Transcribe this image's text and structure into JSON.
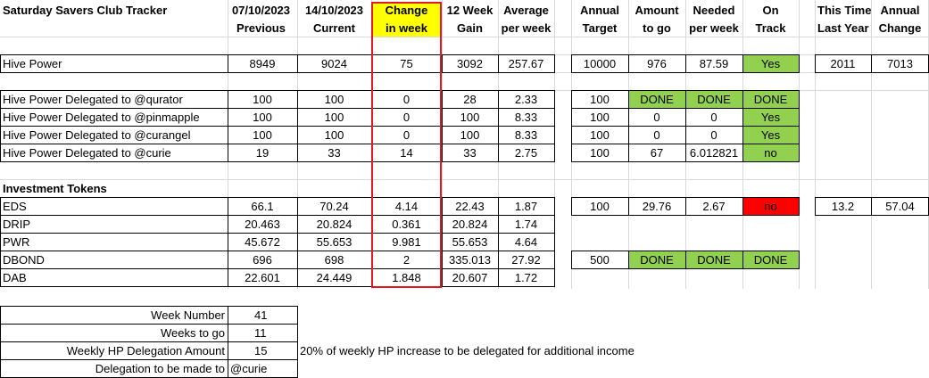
{
  "title": "Saturday Savers Club Tracker",
  "headers": {
    "prev_top": "07/10/2023",
    "prev_bot": "Previous",
    "cur_top": "14/10/2023",
    "cur_bot": "Current",
    "chg_top": "Change",
    "chg_bot": "in week",
    "gain_top": "12 Week",
    "gain_bot": "Gain",
    "avg_top": "Average",
    "avg_bot": "per week",
    "target_top": "Annual",
    "target_bot": "Target",
    "togo_top": "Amount",
    "togo_bot": "to go",
    "needed_top": "Needed",
    "needed_bot": "per week",
    "ontrack_top": "On",
    "ontrack_bot": "Track",
    "lastyear_top": "This Time",
    "lastyear_bot": "Last Year",
    "annchg_top": "Annual",
    "annchg_bot": "Change"
  },
  "rows": {
    "hp": {
      "label": "Hive Power",
      "prev": "8949",
      "cur": "9024",
      "chg": "75",
      "gain": "3092",
      "avg": "257.67",
      "target": "10000",
      "togo": "976",
      "needed": "87.59",
      "ontrack": "Yes",
      "lastyear": "2011",
      "annchg": "7013"
    },
    "qurator": {
      "label": "Hive Power Delegated to @qurator",
      "prev": "100",
      "cur": "100",
      "chg": "0",
      "gain": "28",
      "avg": "2.33",
      "target": "100",
      "togo": "DONE",
      "needed": "DONE",
      "ontrack": "DONE"
    },
    "pinmapple": {
      "label": "Hive Power Delegated to @pinmapple",
      "prev": "100",
      "cur": "100",
      "chg": "0",
      "gain": "100",
      "avg": "8.33",
      "target": "100",
      "togo": "0",
      "needed": "0",
      "ontrack": "Yes"
    },
    "curangel": {
      "label": "Hive Power Delegated to @curangel",
      "prev": "100",
      "cur": "100",
      "chg": "0",
      "gain": "100",
      "avg": "8.33",
      "target": "100",
      "togo": "0",
      "needed": "0",
      "ontrack": "Yes"
    },
    "curie": {
      "label": "Hive Power Delegated to @curie",
      "prev": "19",
      "cur": "33",
      "chg": "14",
      "gain": "33",
      "avg": "2.75",
      "target": "100",
      "togo": "67",
      "needed": "6.012821",
      "ontrack": "no"
    },
    "eds": {
      "label": "EDS",
      "prev": "66.1",
      "cur": "70.24",
      "chg": "4.14",
      "gain": "22.43",
      "avg": "1.87",
      "target": "100",
      "togo": "29.76",
      "needed": "2.67",
      "ontrack": "no",
      "lastyear": "13.2",
      "annchg": "57.04"
    },
    "drip": {
      "label": "DRIP",
      "prev": "20.463",
      "cur": "20.824",
      "chg": "0.361",
      "gain": "20.824",
      "avg": "1.74"
    },
    "pwr": {
      "label": "PWR",
      "prev": "45.672",
      "cur": "55.653",
      "chg": "9.981",
      "gain": "55.653",
      "avg": "4.64"
    },
    "dbond": {
      "label": "DBOND",
      "prev": "696",
      "cur": "698",
      "chg": "2",
      "gain": "335.013",
      "avg": "27.92",
      "target": "500",
      "togo": "DONE",
      "needed": "DONE",
      "ontrack": "DONE"
    },
    "dab": {
      "label": "DAB",
      "prev": "22.601",
      "cur": "24.449",
      "chg": "1.848",
      "gain": "20.607",
      "avg": "1.72"
    }
  },
  "investment_tokens_label": "Investment Tokens",
  "summary": {
    "week_number_label": "Week Number",
    "week_number": "41",
    "weeks_to_go_label": "Weeks to go",
    "weeks_to_go": "11",
    "delegation_amount_label": "Weekly HP Delegation Amount",
    "delegation_amount": "15",
    "delegation_note": "20% of weekly HP increase to be delegated for additional income",
    "delegation_to_label": "Delegation to be made to",
    "delegation_to": "@curie"
  },
  "colors": {
    "highlight_yellow": "#ffff00",
    "ontrack_green": "#92d050",
    "offtrack_red": "#ff0000",
    "change_box_border": "#e0191f"
  }
}
